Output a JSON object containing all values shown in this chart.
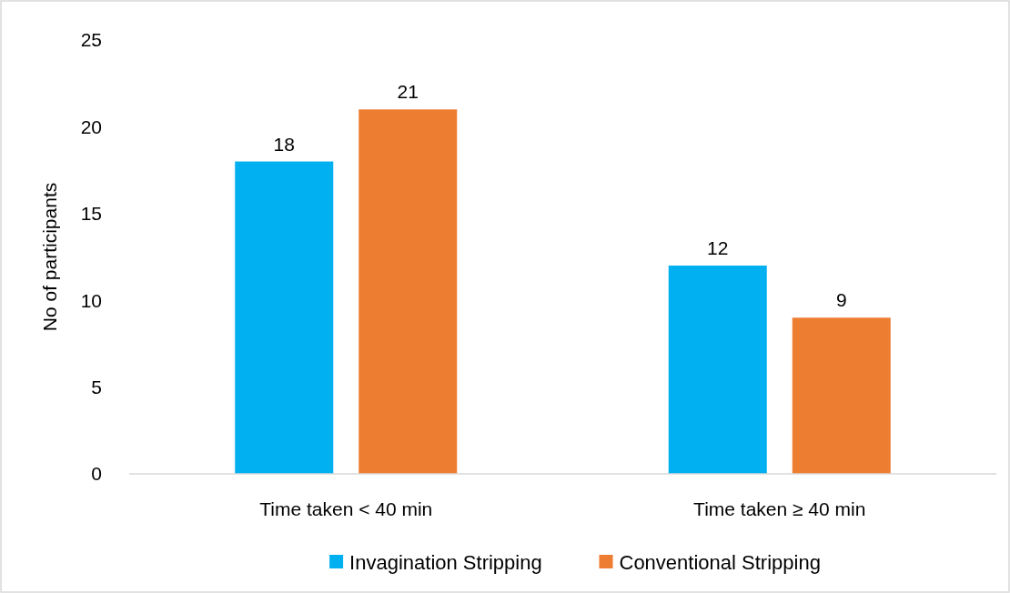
{
  "chart_data": {
    "type": "bar",
    "ylabel": "No of participants",
    "categories": [
      "Time taken < 40 min",
      "Time taken ≥ 40 min"
    ],
    "series": [
      {
        "name": "Invagination Stripping",
        "color": "#00b0f0",
        "values": [
          18,
          12
        ]
      },
      {
        "name": "Conventional Stripping",
        "color": "#ed7d31",
        "values": [
          21,
          9
        ]
      }
    ],
    "ylim": [
      0,
      25
    ],
    "yticks": [
      0,
      5,
      10,
      15,
      20,
      25
    ],
    "grid": false,
    "legend": "bottom",
    "data_labels": true
  }
}
